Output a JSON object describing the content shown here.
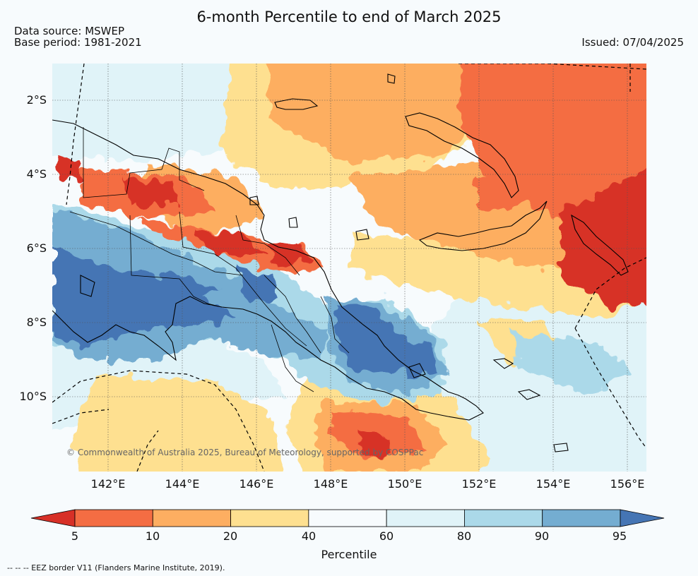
{
  "title": "6-month Percentile to end of March 2025",
  "data_source": "Data source: MSWEP",
  "base_period": "Base period: 1981-2021",
  "issued": "Issued: 07/04/2025",
  "latitude_labels": [
    "2°S",
    "4°S",
    "6°S",
    "8°S",
    "10°S"
  ],
  "longitude_labels": [
    "142°E",
    "144°E",
    "146°E",
    "148°E",
    "150°E",
    "152°E",
    "154°E",
    "156°E"
  ],
  "copyright": "© Commonwealth of Australia 2025, Bureau of Meteorology, supported by COSPPac",
  "colorbar": {
    "label": "Percentile",
    "ticks": [
      "5",
      "10",
      "20",
      "40",
      "60",
      "80",
      "90",
      "95"
    ],
    "colors": [
      "#d73027",
      "#f46d43",
      "#fdae61",
      "#fee090",
      "#f7fbfd",
      "#e0f3f8",
      "#abd9e9",
      "#74add1",
      "#4575b4"
    ]
  },
  "footnote": "-- -- -- EEZ border V11 (Flanders Marine Institute, 2019)."
}
